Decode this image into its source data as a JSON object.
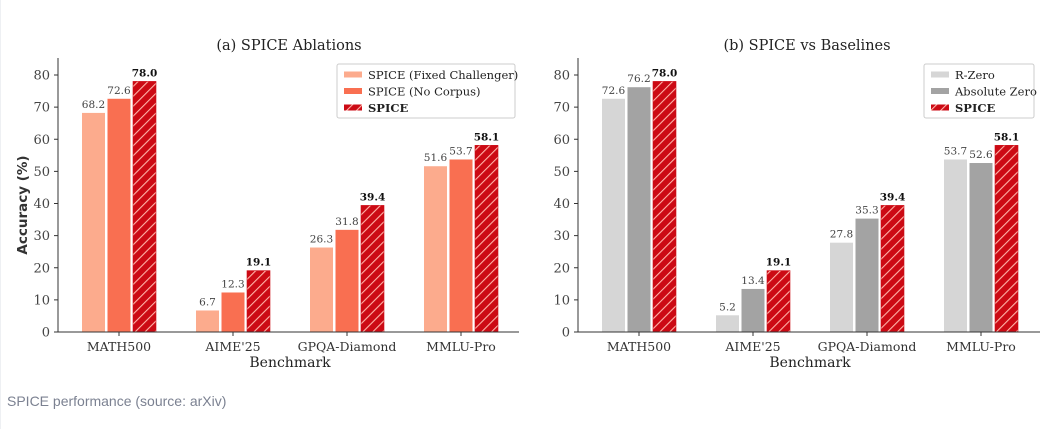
{
  "caption": "SPICE performance (source: arXiv)",
  "colors": {
    "fixed_challenger": "#fcab8d",
    "no_corpus": "#f96f51",
    "spice": "#cc0a14",
    "spice_hatch": "#ffb3a8",
    "r_zero": "#d6d6d6",
    "absolute_zero": "#a3a3a3",
    "axis": "#333333",
    "tick_text": "#444444"
  },
  "chart_data": [
    {
      "type": "bar",
      "title": "(a) SPICE Ablations",
      "xlabel": "Benchmark",
      "ylabel": "Accuracy (%)",
      "ylim": [
        0,
        85
      ],
      "yticks": [
        0,
        10,
        20,
        30,
        40,
        50,
        60,
        70,
        80
      ],
      "grid": false,
      "legend_position": "top-right",
      "categories": [
        "MATH500",
        "AIME'25",
        "GPQA-Diamond",
        "MMLU-Pro"
      ],
      "series": [
        {
          "name": "SPICE (Fixed Challenger)",
          "color_key": "fixed_challenger",
          "hatch": false,
          "bold": false,
          "values": [
            68.2,
            6.7,
            26.3,
            51.6
          ],
          "labels": [
            "68.2",
            "6.7",
            "26.3",
            "51.6"
          ]
        },
        {
          "name": "SPICE (No Corpus)",
          "color_key": "no_corpus",
          "hatch": false,
          "bold": false,
          "values": [
            72.6,
            12.3,
            31.8,
            53.7
          ],
          "labels": [
            "72.6",
            "12.3",
            "31.8",
            "53.7"
          ]
        },
        {
          "name": "SPICE",
          "color_key": "spice",
          "hatch": true,
          "bold": true,
          "values": [
            78.0,
            19.1,
            39.4,
            58.1
          ],
          "labels": [
            "78.0",
            "19.1",
            "39.4",
            "58.1"
          ]
        }
      ]
    },
    {
      "type": "bar",
      "title": "(b) SPICE vs Baselines",
      "xlabel": "Benchmark",
      "ylabel": "",
      "ylim": [
        0,
        85
      ],
      "yticks": [
        0,
        10,
        20,
        30,
        40,
        50,
        60,
        70,
        80
      ],
      "grid": false,
      "legend_position": "top-right",
      "categories": [
        "MATH500",
        "AIME'25",
        "GPQA-Diamond",
        "MMLU-Pro"
      ],
      "series": [
        {
          "name": "R-Zero",
          "color_key": "r_zero",
          "hatch": false,
          "bold": false,
          "values": [
            72.6,
            5.2,
            27.8,
            53.7
          ],
          "labels": [
            "72.6",
            "5.2",
            "27.8",
            "53.7"
          ]
        },
        {
          "name": "Absolute Zero",
          "color_key": "absolute_zero",
          "hatch": false,
          "bold": false,
          "values": [
            76.2,
            13.4,
            35.3,
            52.6
          ],
          "labels": [
            "76.2",
            "13.4",
            "35.3",
            "52.6"
          ]
        },
        {
          "name": "SPICE",
          "color_key": "spice",
          "hatch": true,
          "bold": true,
          "values": [
            78.0,
            19.1,
            39.4,
            58.1
          ],
          "labels": [
            "78.0",
            "19.1",
            "39.4",
            "58.1"
          ]
        }
      ]
    }
  ]
}
